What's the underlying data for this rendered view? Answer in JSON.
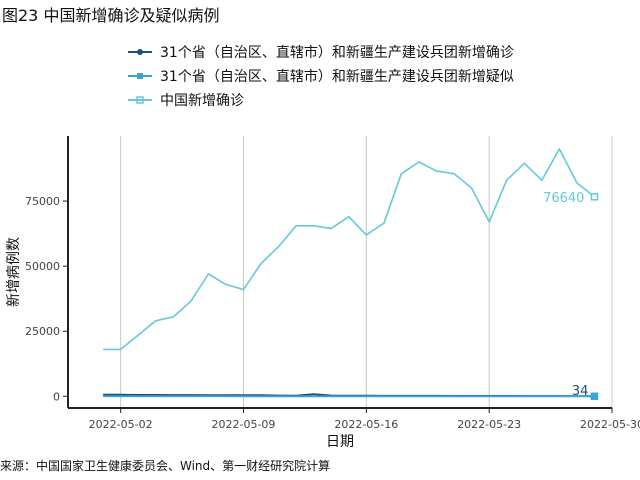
{
  "figure": {
    "title": "图23 中国新增确诊及疑似病例",
    "source": "来源：中国国家卫生健康委员会、Wind、第一财经研究院计算"
  },
  "chart_data": {
    "type": "line",
    "xlabel": "日期",
    "ylabel": "新增病例数",
    "x_ticks": [
      "2022-05-02",
      "2022-05-09",
      "2022-05-16",
      "2022-05-23",
      "2022-05-30"
    ],
    "y_ticks": [
      0,
      25000,
      50000,
      75000
    ],
    "y_tick_labels": [
      "0",
      "25000",
      "50000",
      "75000"
    ],
    "ylim": [
      -4500,
      100000
    ],
    "xlim": [
      "2022-04-29",
      "2022-05-30"
    ],
    "grid": "vertical",
    "legend_position": "top",
    "series": [
      {
        "name": "31个省（自治区、直辖市）和新疆生产建设兵团新增确诊",
        "color": "#1f4e79",
        "x": [
          "2022-05-01",
          "2022-05-02",
          "2022-05-03",
          "2022-05-04",
          "2022-05-05",
          "2022-05-06",
          "2022-05-07",
          "2022-05-08",
          "2022-05-09",
          "2022-05-10",
          "2022-05-11",
          "2022-05-12",
          "2022-05-13",
          "2022-05-14",
          "2022-05-15",
          "2022-05-16",
          "2022-05-17",
          "2022-05-18",
          "2022-05-19",
          "2022-05-20",
          "2022-05-21",
          "2022-05-22",
          "2022-05-23",
          "2022-05-24",
          "2022-05-25",
          "2022-05-26",
          "2022-05-27",
          "2022-05-28",
          "2022-05-29"
        ],
        "values": [
          650,
          600,
          550,
          520,
          500,
          480,
          470,
          450,
          420,
          400,
          300,
          280,
          800,
          300,
          250,
          220,
          200,
          190,
          180,
          170,
          160,
          150,
          140,
          130,
          120,
          110,
          100,
          80,
          34
        ]
      },
      {
        "name": "31个省（自治区、直辖市）和新疆生产建设兵团新增疑似",
        "color": "#3aa3d8",
        "x": [
          "2022-05-01",
          "2022-05-02",
          "2022-05-03",
          "2022-05-04",
          "2022-05-05",
          "2022-05-06",
          "2022-05-07",
          "2022-05-08",
          "2022-05-09",
          "2022-05-10",
          "2022-05-11",
          "2022-05-12",
          "2022-05-13",
          "2022-05-14",
          "2022-05-15",
          "2022-05-16",
          "2022-05-17",
          "2022-05-18",
          "2022-05-19",
          "2022-05-20",
          "2022-05-21",
          "2022-05-22",
          "2022-05-23",
          "2022-05-24",
          "2022-05-25",
          "2022-05-26",
          "2022-05-27",
          "2022-05-28",
          "2022-05-29"
        ],
        "values": [
          30,
          25,
          20,
          20,
          20,
          15,
          15,
          15,
          10,
          10,
          10,
          10,
          10,
          8,
          8,
          8,
          6,
          6,
          5,
          5,
          5,
          4,
          4,
          3,
          3,
          2,
          2,
          1,
          0
        ]
      },
      {
        "name": "中国新增确诊",
        "color": "#66c9d8",
        "x": [
          "2022-05-01",
          "2022-05-02",
          "2022-05-03",
          "2022-05-04",
          "2022-05-05",
          "2022-05-06",
          "2022-05-07",
          "2022-05-08",
          "2022-05-09",
          "2022-05-10",
          "2022-05-11",
          "2022-05-12",
          "2022-05-13",
          "2022-05-14",
          "2022-05-15",
          "2022-05-16",
          "2022-05-17",
          "2022-05-18",
          "2022-05-19",
          "2022-05-20",
          "2022-05-21",
          "2022-05-22",
          "2022-05-23",
          "2022-05-24",
          "2022-05-25",
          "2022-05-26",
          "2022-05-27",
          "2022-05-28",
          "2022-05-29"
        ],
        "values": [
          18000,
          18000,
          23500,
          29000,
          30500,
          36500,
          47000,
          43000,
          41000,
          51000,
          57500,
          65500,
          65500,
          64500,
          69000,
          62000,
          66500,
          85500,
          90000,
          86500,
          85500,
          80000,
          67000,
          83000,
          89500,
          83000,
          95000,
          82000,
          76640
        ]
      }
    ],
    "end_labels": [
      "76640",
      "34"
    ]
  }
}
